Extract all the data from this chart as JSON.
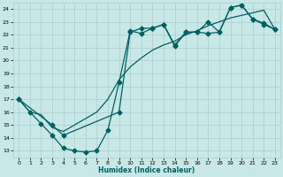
{
  "xlabel": "Humidex (Indice chaleur)",
  "xlim": [
    -0.5,
    23.5
  ],
  "ylim": [
    12.5,
    24.5
  ],
  "yticks": [
    13,
    14,
    15,
    16,
    17,
    18,
    19,
    20,
    21,
    22,
    23,
    24
  ],
  "xticks": [
    0,
    1,
    2,
    3,
    4,
    5,
    6,
    7,
    8,
    9,
    10,
    11,
    12,
    13,
    14,
    15,
    16,
    17,
    18,
    19,
    20,
    21,
    22,
    23
  ],
  "bg_color": "#c8e8e8",
  "grid_color": "#aacccc",
  "line_color": "#006060",
  "line1_x": [
    0,
    1,
    2,
    3,
    4,
    5,
    6,
    7,
    8,
    9,
    10,
    11,
    12,
    13,
    14,
    15,
    16,
    17,
    18,
    19,
    20,
    21,
    22,
    23
  ],
  "line1_y": [
    17.0,
    16.0,
    15.8,
    14.8,
    14.5,
    15.0,
    15.5,
    16.0,
    17.0,
    18.5,
    19.5,
    20.2,
    20.8,
    21.2,
    21.5,
    22.0,
    22.3,
    22.7,
    23.0,
    23.3,
    23.5,
    23.7,
    23.9,
    22.4
  ],
  "line2_x": [
    0,
    1,
    2,
    3,
    4,
    5,
    6,
    7,
    8,
    9,
    10,
    11,
    12,
    13,
    14,
    15,
    16,
    17,
    18,
    19,
    20,
    21,
    22,
    23
  ],
  "line2_y": [
    17.0,
    16.0,
    15.1,
    14.2,
    13.2,
    13.0,
    12.9,
    13.0,
    14.6,
    18.3,
    22.3,
    22.1,
    22.5,
    22.8,
    21.2,
    22.2,
    22.2,
    22.1,
    22.2,
    24.1,
    24.3,
    23.2,
    22.9,
    22.4
  ],
  "line3_x": [
    0,
    3,
    4,
    9,
    10,
    11,
    12,
    13,
    14,
    15,
    16,
    17,
    18,
    19,
    20,
    21,
    22,
    23
  ],
  "line3_y": [
    17.0,
    15.0,
    14.2,
    16.0,
    22.2,
    22.5,
    22.5,
    22.8,
    21.1,
    22.2,
    22.2,
    23.0,
    22.2,
    24.1,
    24.3,
    23.2,
    22.8,
    22.4
  ],
  "markersize": 2.5,
  "linewidth": 0.9
}
